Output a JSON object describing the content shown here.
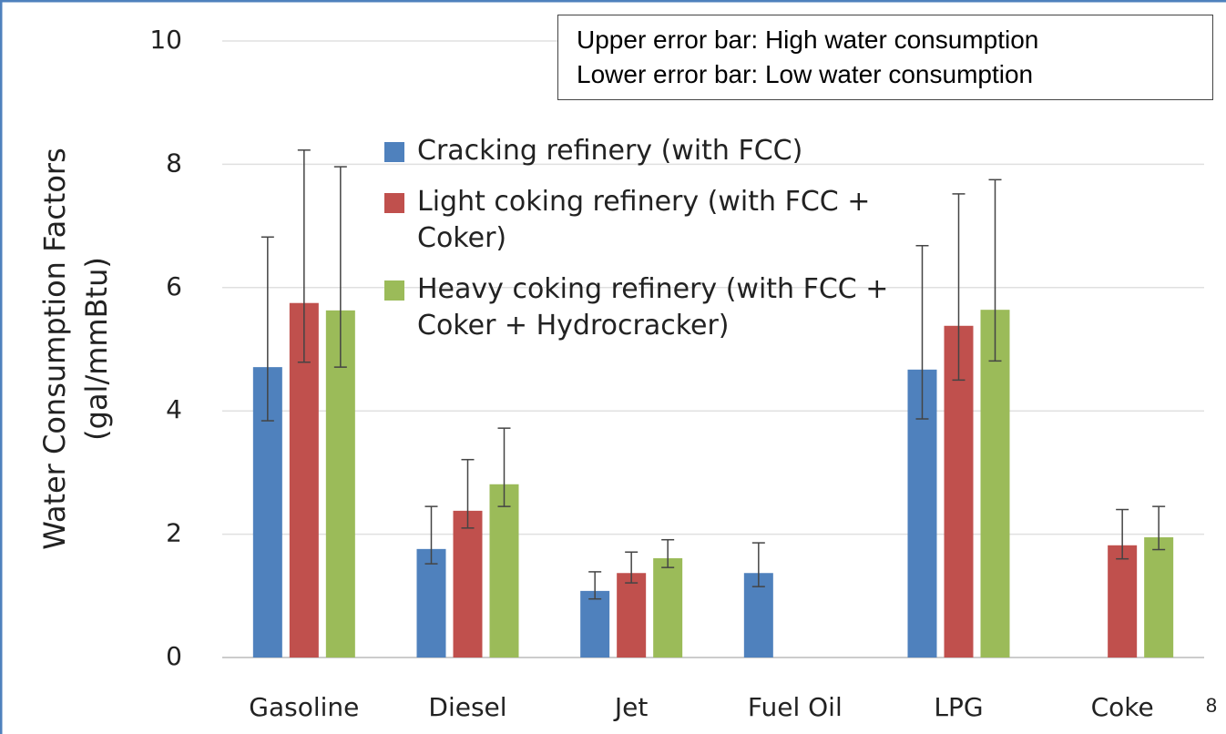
{
  "chart_data": {
    "type": "bar",
    "ylabel": [
      "Water Consumption  Factors",
      "(gal/mmBtu)"
    ],
    "annotation": [
      "Upper error bar: High water consumption",
      "Lower error bar: Low water consumption"
    ],
    "page_number": "8",
    "categories": [
      "Gasoline",
      "Diesel",
      "Jet",
      "Fuel Oil",
      "LPG",
      "Coke"
    ],
    "series": [
      {
        "name": "Cracking refinery (with FCC)",
        "color": "#4f81bd",
        "values": [
          4.71,
          1.76,
          1.08,
          1.37,
          4.67,
          null
        ],
        "high": [
          6.82,
          2.45,
          1.39,
          1.86,
          6.68,
          null
        ],
        "low": [
          3.84,
          1.52,
          0.95,
          1.15,
          3.87,
          null
        ]
      },
      {
        "name": "Light coking refinery (with FCC + Coker)",
        "color": "#c0504d",
        "values": [
          5.75,
          2.38,
          1.37,
          null,
          5.38,
          1.82
        ],
        "high": [
          8.23,
          3.21,
          1.71,
          null,
          7.52,
          2.4
        ],
        "low": [
          4.79,
          2.1,
          1.21,
          null,
          4.5,
          1.6
        ]
      },
      {
        "name": "Heavy coking refinery (with FCC + Coker + Hydrocracker)",
        "color": "#9bbb59",
        "values": [
          5.63,
          2.81,
          1.61,
          null,
          5.64,
          1.95
        ],
        "high": [
          7.96,
          3.72,
          1.91,
          null,
          7.75,
          2.45
        ],
        "low": [
          4.71,
          2.45,
          1.46,
          null,
          4.81,
          1.75
        ]
      }
    ],
    "ylim": [
      0,
      10
    ],
    "yticks": [
      0,
      2,
      4,
      6,
      8,
      10
    ],
    "grid": true
  }
}
